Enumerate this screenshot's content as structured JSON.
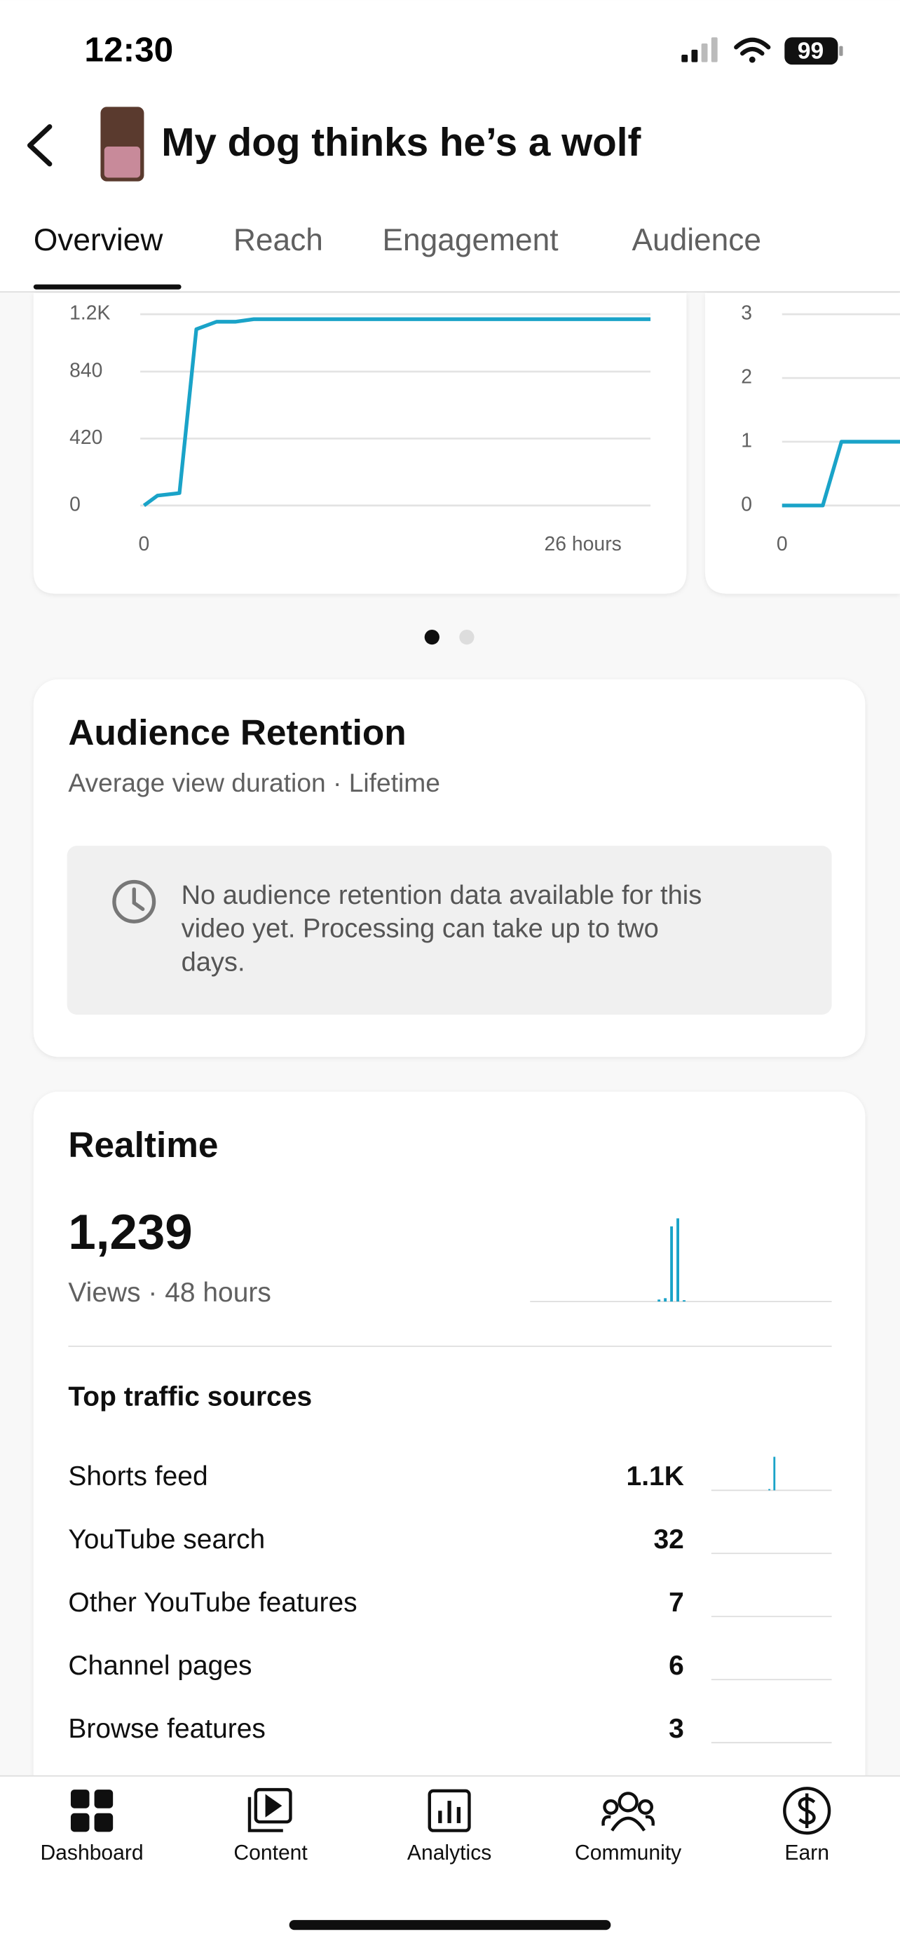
{
  "status_bar": {
    "time": "12:30",
    "battery": "99"
  },
  "header": {
    "title": "My dog thinks he’s a wolf"
  },
  "tabs": [
    "Overview",
    "Reach",
    "Engagement",
    "Audience"
  ],
  "charts": [
    {
      "type": "line",
      "color": "#1aa3c8",
      "ylim": [
        0,
        1200
      ],
      "yticks": [
        0,
        420,
        840,
        {
          "value": 1200,
          "label": "1.2K"
        }
      ],
      "xlim": [
        0,
        30
      ],
      "xticks": [
        0,
        {
          "value": 26,
          "label": "26 hours"
        }
      ],
      "x": [
        0,
        0.8,
        2.1,
        3.1,
        4.3,
        5.4,
        6.5,
        30
      ],
      "y": [
        0,
        62,
        78,
        1106,
        1153,
        1153,
        1169,
        1169
      ]
    },
    {
      "type": "line",
      "color": "#1aa3c8",
      "ylim": [
        0,
        3
      ],
      "yticks": [
        0,
        1,
        2,
        3
      ],
      "xlim": [
        0,
        30
      ],
      "xticks": [
        0
      ],
      "x": [
        0,
        2.4,
        3.5,
        10
      ],
      "y": [
        0,
        0,
        1,
        1
      ]
    }
  ],
  "retention": {
    "title": "Audience Retention",
    "subtitle": "Average view duration · Lifetime",
    "message_lines": [
      "No audience retention data available for this",
      "video yet. Processing can take up to two",
      "days."
    ]
  },
  "realtime": {
    "title": "Realtime",
    "value": "1,239",
    "caption": "Views · 48 hours",
    "chart": {
      "type": "bar",
      "color": "#1aa3c8",
      "values": [
        0,
        0,
        0,
        0,
        0,
        0,
        0,
        0,
        0,
        0,
        0,
        0,
        0,
        0,
        0,
        0,
        0,
        0,
        0,
        0,
        15,
        25,
        560,
        620,
        10,
        0,
        0,
        0,
        0,
        0,
        0,
        0,
        0,
        0,
        0,
        0,
        0,
        0,
        0,
        0,
        0,
        0,
        0,
        0,
        0,
        0,
        0,
        0
      ]
    },
    "traffic_title": "Top traffic sources",
    "sources": [
      {
        "name": "Shorts feed",
        "value": "1.1K",
        "trend": [
          0,
          0,
          0,
          0,
          0,
          0,
          0,
          0,
          0,
          0,
          0,
          40,
          1060,
          0,
          0,
          0,
          0,
          0,
          0,
          0,
          0,
          0,
          0,
          0
        ]
      },
      {
        "name": "YouTube search",
        "value": "32",
        "trend": [
          0,
          0,
          0,
          0,
          0,
          0,
          0,
          0,
          0,
          0,
          0,
          0,
          0,
          0,
          0,
          0,
          0,
          0,
          0,
          0,
          0,
          0,
          0,
          0
        ]
      },
      {
        "name": "Other YouTube features",
        "value": "7",
        "trend": [
          0,
          0,
          0,
          0,
          0,
          0,
          0,
          0,
          0,
          0,
          0,
          0,
          0,
          0,
          0,
          0,
          0,
          0,
          0,
          0,
          0,
          0,
          0,
          0
        ]
      },
      {
        "name": "Channel pages",
        "value": "6",
        "trend": [
          0,
          0,
          0,
          0,
          0,
          0,
          0,
          0,
          0,
          0,
          0,
          0,
          0,
          0,
          0,
          0,
          0,
          0,
          0,
          0,
          0,
          0,
          0,
          0
        ]
      },
      {
        "name": "Browse features",
        "value": "3",
        "trend": [
          0,
          0,
          0,
          0,
          0,
          0,
          0,
          0,
          0,
          0,
          0,
          0,
          0,
          0,
          0,
          0,
          0,
          0,
          0,
          0,
          0,
          0,
          0,
          0
        ]
      }
    ]
  },
  "nav": [
    "Dashboard",
    "Content",
    "Analytics",
    "Community",
    "Earn"
  ]
}
